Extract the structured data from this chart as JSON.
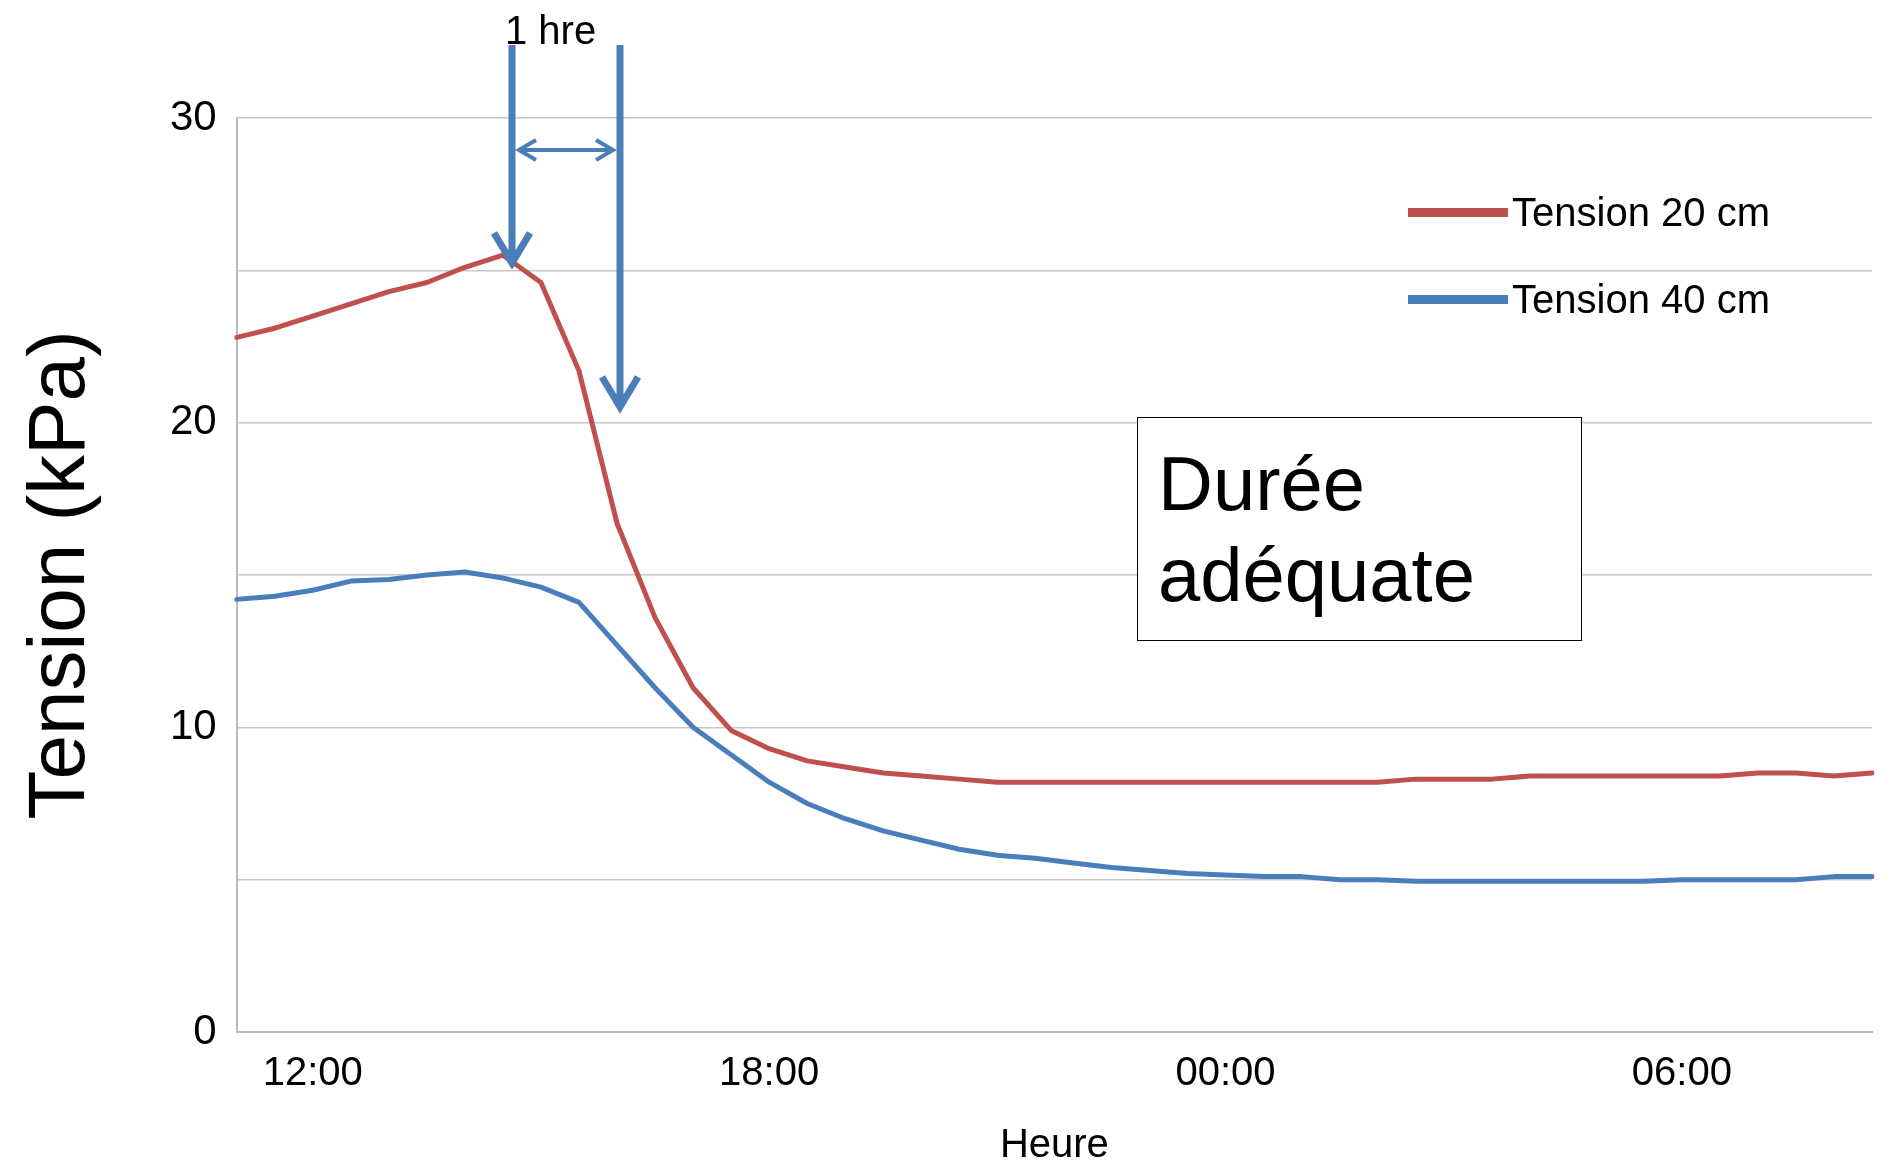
{
  "chart_data": {
    "type": "line",
    "xlabel": "Heure",
    "ylabel": "Tension (kPa)",
    "categories": [
      null,
      null,
      "12:00",
      null,
      null,
      null,
      null,
      null,
      null,
      null,
      null,
      null,
      null,
      null,
      "18:00",
      null,
      null,
      null,
      null,
      null,
      null,
      null,
      null,
      null,
      null,
      null,
      "00:00",
      null,
      null,
      null,
      null,
      null,
      null,
      null,
      null,
      null,
      null,
      null,
      "06:00",
      null,
      null,
      null,
      null,
      null
    ],
    "ylim": [
      0,
      30
    ],
    "yticks": [
      0,
      {
        "value": 5,
        "label": null
      },
      10,
      {
        "value": 15,
        "label": null
      },
      20,
      {
        "value": 25,
        "label": null
      },
      30
    ],
    "grid": "y",
    "legend": "top right",
    "series": [
      {
        "name": "Tension 20 cm",
        "color": "#c0504d",
        "values": [
          22.8,
          23.1,
          23.5,
          23.9,
          24.3,
          24.6,
          25.1,
          25.5,
          24.6,
          21.7,
          16.7,
          13.6,
          11.3,
          9.9,
          9.3,
          8.9,
          8.7,
          8.5,
          8.4,
          8.3,
          8.2,
          8.2,
          8.2,
          8.2,
          8.2,
          8.2,
          8.2,
          8.2,
          8.2,
          8.2,
          8.2,
          8.3,
          8.3,
          8.3,
          8.4,
          8.4,
          8.4,
          8.4,
          8.4,
          8.4,
          8.5,
          8.5,
          8.4,
          8.5
        ]
      },
      {
        "name": "Tension 40 cm",
        "color": "#4a7ebb",
        "values": [
          14.2,
          14.3,
          14.5,
          14.8,
          14.85,
          15.0,
          15.1,
          14.9,
          14.6,
          14.1,
          12.7,
          11.3,
          10.0,
          9.1,
          8.2,
          7.5,
          7.0,
          6.6,
          6.3,
          6.0,
          5.8,
          5.7,
          5.55,
          5.4,
          5.3,
          5.2,
          5.15,
          5.1,
          5.1,
          5.0,
          5.0,
          4.95,
          4.95,
          4.95,
          4.95,
          4.95,
          4.95,
          4.95,
          5.0,
          5.0,
          5.0,
          5.0,
          5.1,
          5.1
        ]
      }
    ],
    "annotations": [
      "1 hre",
      "Durée adéquate"
    ]
  }
}
